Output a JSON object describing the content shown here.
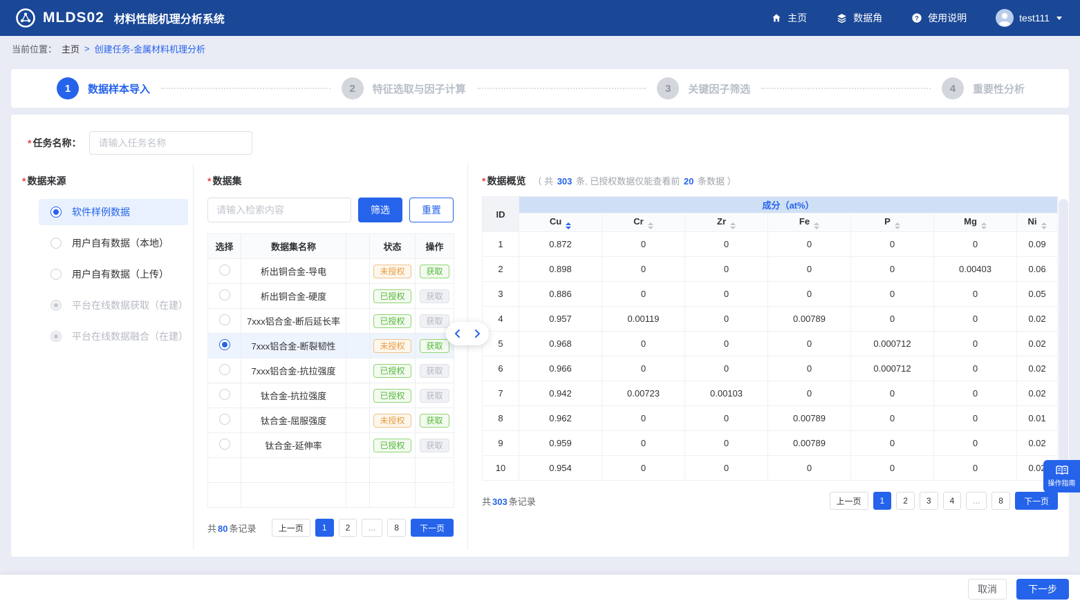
{
  "colors": {
    "primary": "#2563eb",
    "navbar_bg": "#1a4796",
    "page_bg": "#e9ebf5",
    "warning": "#e99d42",
    "success": "#55b83d"
  },
  "misc": {
    "required_mark": "*"
  },
  "navbar": {
    "brand": "MLDS02",
    "brand_subtitle": "材料性能机理分析系统",
    "menu": [
      {
        "label": "主页",
        "icon": "home-icon"
      },
      {
        "label": "数据角",
        "icon": "layers-icon"
      },
      {
        "label": "使用说明",
        "icon": "help-icon"
      }
    ],
    "username": "test111"
  },
  "breadcrumb": {
    "prefix": "当前位置：",
    "home": "主页",
    "separator": ">",
    "current": "创建任务-金属材料机理分析"
  },
  "steps": [
    {
      "num": "1",
      "label": "数据样本导入",
      "active": true
    },
    {
      "num": "2",
      "label": "特征选取与因子计算",
      "active": false
    },
    {
      "num": "3",
      "label": "关键因子筛选",
      "active": false
    },
    {
      "num": "4",
      "label": "重要性分析",
      "active": false
    }
  ],
  "task_form": {
    "label": "任务名称：",
    "placeholder": "请输入任务名称"
  },
  "data_source": {
    "title": "数据来源",
    "options": [
      {
        "label": "软件样例数据",
        "checked": true,
        "disabled": false
      },
      {
        "label": "用户自有数据（本地）",
        "checked": false,
        "disabled": false
      },
      {
        "label": "用户自有数据（上传）",
        "checked": false,
        "disabled": false
      },
      {
        "label": "平台在线数据获取（在建）",
        "checked": false,
        "disabled": true
      },
      {
        "label": "平台在线数据融合（在建）",
        "checked": false,
        "disabled": true
      }
    ]
  },
  "dataset_panel": {
    "title": "数据集",
    "search_placeholder": "请输入检索内容",
    "filter_button": "筛选",
    "reset_button": "重置",
    "headers": {
      "select": "选择",
      "name": "数据集名称",
      "status": "状态",
      "action": "操作"
    },
    "rows": [
      {
        "name": "析出铜合金-导电",
        "status": "未授权",
        "action": "获取",
        "action_enabled": true,
        "selected": false
      },
      {
        "name": "析出铜合金-硬度",
        "status": "已授权",
        "action": "获取",
        "action_enabled": false,
        "selected": false
      },
      {
        "name": "7xxx铝合金-断后延长率",
        "status": "已授权",
        "action": "获取",
        "action_enabled": false,
        "selected": false
      },
      {
        "name": "7xxx铝合金-断裂韧性",
        "status": "未授权",
        "action": "获取",
        "action_enabled": true,
        "selected": true
      },
      {
        "name": "7xxx铝合金-抗拉强度",
        "status": "已授权",
        "action": "获取",
        "action_enabled": false,
        "selected": false
      },
      {
        "name": "钛合金-抗拉强度",
        "status": "已授权",
        "action": "获取",
        "action_enabled": false,
        "selected": false
      },
      {
        "name": "钛合金-屈服强度",
        "status": "未授权",
        "action": "获取",
        "action_enabled": true,
        "selected": false
      },
      {
        "name": "钛合金-延伸率",
        "status": "已授权",
        "action": "获取",
        "action_enabled": false,
        "selected": false
      }
    ],
    "empty_rows": 2,
    "pagination": {
      "total_prefix": "共",
      "total": "80",
      "total_suffix": "条记录",
      "prev": "上一页",
      "pages": [
        "1",
        "2",
        "...",
        "8"
      ],
      "active": "1",
      "next": "下一页"
    }
  },
  "preview_panel": {
    "title": "数据概览",
    "note_open": "（ 共",
    "note_count": "303",
    "note_mid": "条, 已授权数据仅能查看前",
    "note_limit": "20",
    "note_close": "条数据 ）",
    "table": {
      "id_header": "ID",
      "group_header": "成分（at%）",
      "columns": [
        "Cu",
        "Cr",
        "Zr",
        "Fe",
        "P",
        "Mg",
        "Ni"
      ],
      "sorted_column": "Cu",
      "rows": [
        {
          "id": "1",
          "values": [
            "0.872",
            "0",
            "0",
            "0",
            "0",
            "0",
            "0.09"
          ]
        },
        {
          "id": "2",
          "values": [
            "0.898",
            "0",
            "0",
            "0",
            "0",
            "0.00403",
            "0.06"
          ]
        },
        {
          "id": "3",
          "values": [
            "0.886",
            "0",
            "0",
            "0",
            "0",
            "0",
            "0.05"
          ]
        },
        {
          "id": "4",
          "values": [
            "0.957",
            "0.00119",
            "0",
            "0.00789",
            "0",
            "0",
            "0.02"
          ]
        },
        {
          "id": "5",
          "values": [
            "0.968",
            "0",
            "0",
            "0",
            "0.000712",
            "0",
            "0.02"
          ]
        },
        {
          "id": "6",
          "values": [
            "0.966",
            "0",
            "0",
            "0",
            "0.000712",
            "0",
            "0.02"
          ]
        },
        {
          "id": "7",
          "values": [
            "0.942",
            "0.00723",
            "0.00103",
            "0",
            "0",
            "0",
            "0.02"
          ]
        },
        {
          "id": "8",
          "values": [
            "0.962",
            "0",
            "0",
            "0.00789",
            "0",
            "0",
            "0.01"
          ]
        },
        {
          "id": "9",
          "values": [
            "0.959",
            "0",
            "0",
            "0.00789",
            "0",
            "0",
            "0.02"
          ]
        },
        {
          "id": "10",
          "values": [
            "0.954",
            "0",
            "0",
            "0",
            "0",
            "0",
            "0.02"
          ]
        }
      ]
    },
    "pagination": {
      "total_prefix": "共",
      "total": "303",
      "total_suffix": "条记录",
      "prev": "上一页",
      "pages": [
        "1",
        "2",
        "3",
        "4",
        "...",
        "8"
      ],
      "active": "1",
      "next": "下一页"
    }
  },
  "guide_fab": {
    "label": "操作指南"
  },
  "footer": {
    "cancel": "取消",
    "next": "下一步"
  }
}
